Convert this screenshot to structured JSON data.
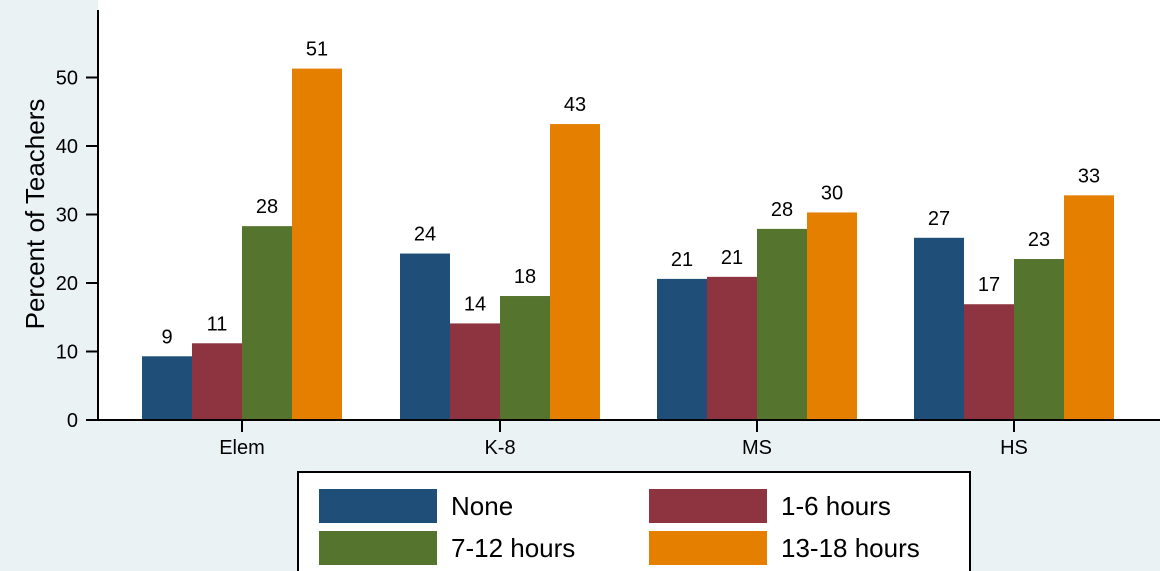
{
  "chart_data": {
    "type": "bar",
    "title": "",
    "xlabel": "",
    "ylabel": "Percent of Teachers",
    "ylim": [
      0,
      55
    ],
    "yticks": [
      0,
      10,
      20,
      30,
      40,
      50
    ],
    "grid": false,
    "legend_position": "bottom",
    "categories": [
      "Elem",
      "K-8",
      "MS",
      "HS"
    ],
    "series": [
      {
        "name": "None",
        "color": "#1f4e79",
        "values": [
          9,
          24,
          21,
          27
        ],
        "plotted": [
          9.3,
          24.3,
          20.6,
          26.6
        ]
      },
      {
        "name": "1-6 hours",
        "color": "#8e3340",
        "values": [
          11,
          14,
          21,
          17
        ],
        "plotted": [
          11.2,
          14.1,
          20.9,
          16.9
        ]
      },
      {
        "name": "7-12 hours",
        "color": "#55752f",
        "values": [
          28,
          18,
          28,
          23
        ],
        "plotted": [
          28.3,
          18.1,
          27.9,
          23.5
        ]
      },
      {
        "name": "13-18 hours",
        "color": "#e47f00",
        "values": [
          51,
          43,
          30,
          33
        ],
        "plotted": [
          51.3,
          43.2,
          30.3,
          32.8
        ]
      }
    ]
  }
}
